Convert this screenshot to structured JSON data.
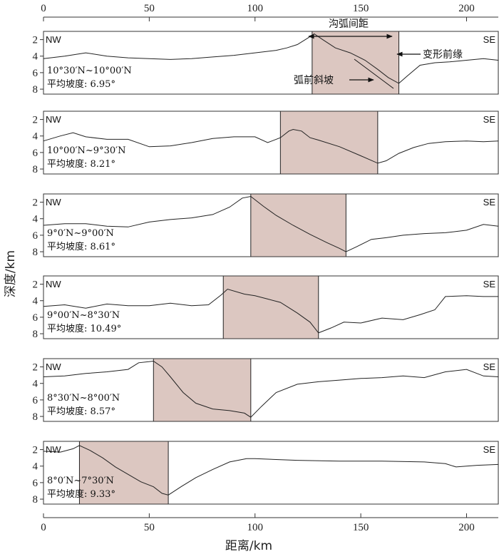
{
  "chart_data": {
    "type": "line",
    "xlabel": "距离/km",
    "ylabel": "深度/km",
    "xlim": [
      0,
      215
    ],
    "ylim": [
      1,
      8.6
    ],
    "x_ticks": [
      0,
      50,
      100,
      150,
      200
    ],
    "y_ticks": [
      2,
      4,
      6,
      8
    ],
    "annotations": {
      "trench_arc_distance": "沟弧间距",
      "deformation_front": "变形前缘",
      "forearc_slope": "弧前斜坡"
    },
    "panels": [
      {
        "left_label": "NW",
        "right_label": "SE",
        "lat_range": "10°30′N~10°00′N",
        "slope_text": "平均坡度: 6.95°",
        "highlight_x": [
          127,
          168
        ],
        "x": [
          0,
          10,
          20,
          30,
          40,
          50,
          60,
          70,
          80,
          90,
          100,
          110,
          115,
          120,
          125,
          128,
          132,
          138,
          145,
          152,
          158,
          163,
          168,
          172,
          178,
          185,
          192,
          200,
          208,
          215
        ],
        "y": [
          4.3,
          4.0,
          3.6,
          4.0,
          4.2,
          4.3,
          4.4,
          4.3,
          4.1,
          3.9,
          3.6,
          3.3,
          3.0,
          2.6,
          1.8,
          1.3,
          2.0,
          3.0,
          3.6,
          4.5,
          5.6,
          6.6,
          7.3,
          6.4,
          5.1,
          4.8,
          4.7,
          4.5,
          4.3,
          4.5
        ]
      },
      {
        "left_label": "NW",
        "right_label": "SE",
        "lat_range": "10°00′N~9°30′N",
        "slope_text": "平均坡度: 8.21°",
        "highlight_x": [
          112,
          158
        ],
        "x": [
          0,
          8,
          14,
          20,
          30,
          40,
          50,
          60,
          70,
          80,
          90,
          100,
          106,
          112,
          116,
          118,
          122,
          126,
          130,
          140,
          150,
          158,
          162,
          168,
          175,
          182,
          190,
          200,
          208,
          215
        ],
        "y": [
          4.6,
          4.0,
          3.6,
          4.1,
          4.4,
          4.4,
          5.3,
          5.2,
          4.8,
          4.3,
          4.1,
          4.1,
          4.8,
          4.2,
          3.4,
          3.2,
          3.4,
          4.2,
          4.5,
          5.3,
          6.4,
          7.3,
          7.0,
          6.1,
          5.4,
          4.9,
          4.7,
          4.6,
          4.7,
          4.6
        ]
      },
      {
        "left_label": "NW",
        "right_label": "SE",
        "lat_range": "9°0′N~9°00′N",
        "slope_text": "平均坡度: 8.61°",
        "highlight_x": [
          98,
          143
        ],
        "x": [
          0,
          10,
          20,
          30,
          40,
          50,
          60,
          70,
          80,
          88,
          94,
          98,
          104,
          110,
          118,
          126,
          134,
          140,
          143,
          148,
          155,
          162,
          170,
          180,
          190,
          200,
          208,
          215
        ],
        "y": [
          4.8,
          4.6,
          4.6,
          4.9,
          5.0,
          4.4,
          4.1,
          3.9,
          3.5,
          2.6,
          1.5,
          1.3,
          2.5,
          3.6,
          4.8,
          5.9,
          6.9,
          7.6,
          8.0,
          7.4,
          6.5,
          6.3,
          6.0,
          5.8,
          5.7,
          5.4,
          4.7,
          4.9
        ]
      },
      {
        "left_label": "NW",
        "right_label": "SE",
        "lat_range": "9°00′N~8°30′N",
        "slope_text": "平均坡度: 10.49°",
        "highlight_x": [
          85,
          130
        ],
        "x": [
          0,
          10,
          20,
          30,
          40,
          50,
          60,
          70,
          78,
          84,
          87,
          95,
          100,
          106,
          112,
          120,
          126,
          130,
          136,
          142,
          150,
          160,
          170,
          178,
          185,
          190,
          200,
          208,
          215
        ],
        "y": [
          4.7,
          4.5,
          4.9,
          4.4,
          4.6,
          4.6,
          4.3,
          4.6,
          4.5,
          3.3,
          2.6,
          3.2,
          3.4,
          3.8,
          4.2,
          5.5,
          6.6,
          7.9,
          7.3,
          6.6,
          6.7,
          6.1,
          6.3,
          5.7,
          5.1,
          3.5,
          3.4,
          3.5,
          3.5
        ]
      },
      {
        "left_label": "NW",
        "right_label": "SE",
        "lat_range": "8°30′N~8°00′N",
        "slope_text": "平均坡度: 8.57°",
        "highlight_x": [
          52,
          98
        ],
        "x": [
          0,
          10,
          20,
          30,
          40,
          45,
          52,
          56,
          60,
          66,
          72,
          80,
          88,
          95,
          98,
          103,
          110,
          120,
          130,
          140,
          150,
          160,
          170,
          180,
          190,
          200,
          208,
          215
        ],
        "y": [
          3.2,
          3.1,
          2.8,
          2.6,
          2.3,
          1.5,
          1.3,
          2.0,
          3.2,
          5.1,
          6.4,
          7.1,
          7.3,
          7.6,
          8.1,
          6.8,
          5.1,
          4.1,
          3.8,
          3.6,
          3.4,
          3.3,
          3.1,
          3.3,
          2.6,
          2.3,
          3.1,
          3.2
        ]
      },
      {
        "left_label": "NW",
        "right_label": "SE",
        "lat_range": "8°0′N~7°30′N",
        "slope_text": "平均坡度: 9.33°",
        "highlight_x": [
          17,
          59
        ],
        "x": [
          0,
          8,
          14,
          17,
          22,
          28,
          34,
          40,
          46,
          52,
          56,
          59,
          65,
          72,
          80,
          88,
          96,
          100,
          110,
          120,
          140,
          160,
          180,
          190,
          195,
          205,
          215
        ],
        "y": [
          2.2,
          2.3,
          1.9,
          1.5,
          2.1,
          3.0,
          4.1,
          5.0,
          5.9,
          6.5,
          7.3,
          7.5,
          6.5,
          5.4,
          4.4,
          3.5,
          3.1,
          3.1,
          3.2,
          3.3,
          3.4,
          3.4,
          3.5,
          3.7,
          4.1,
          3.9,
          3.8
        ]
      }
    ]
  }
}
